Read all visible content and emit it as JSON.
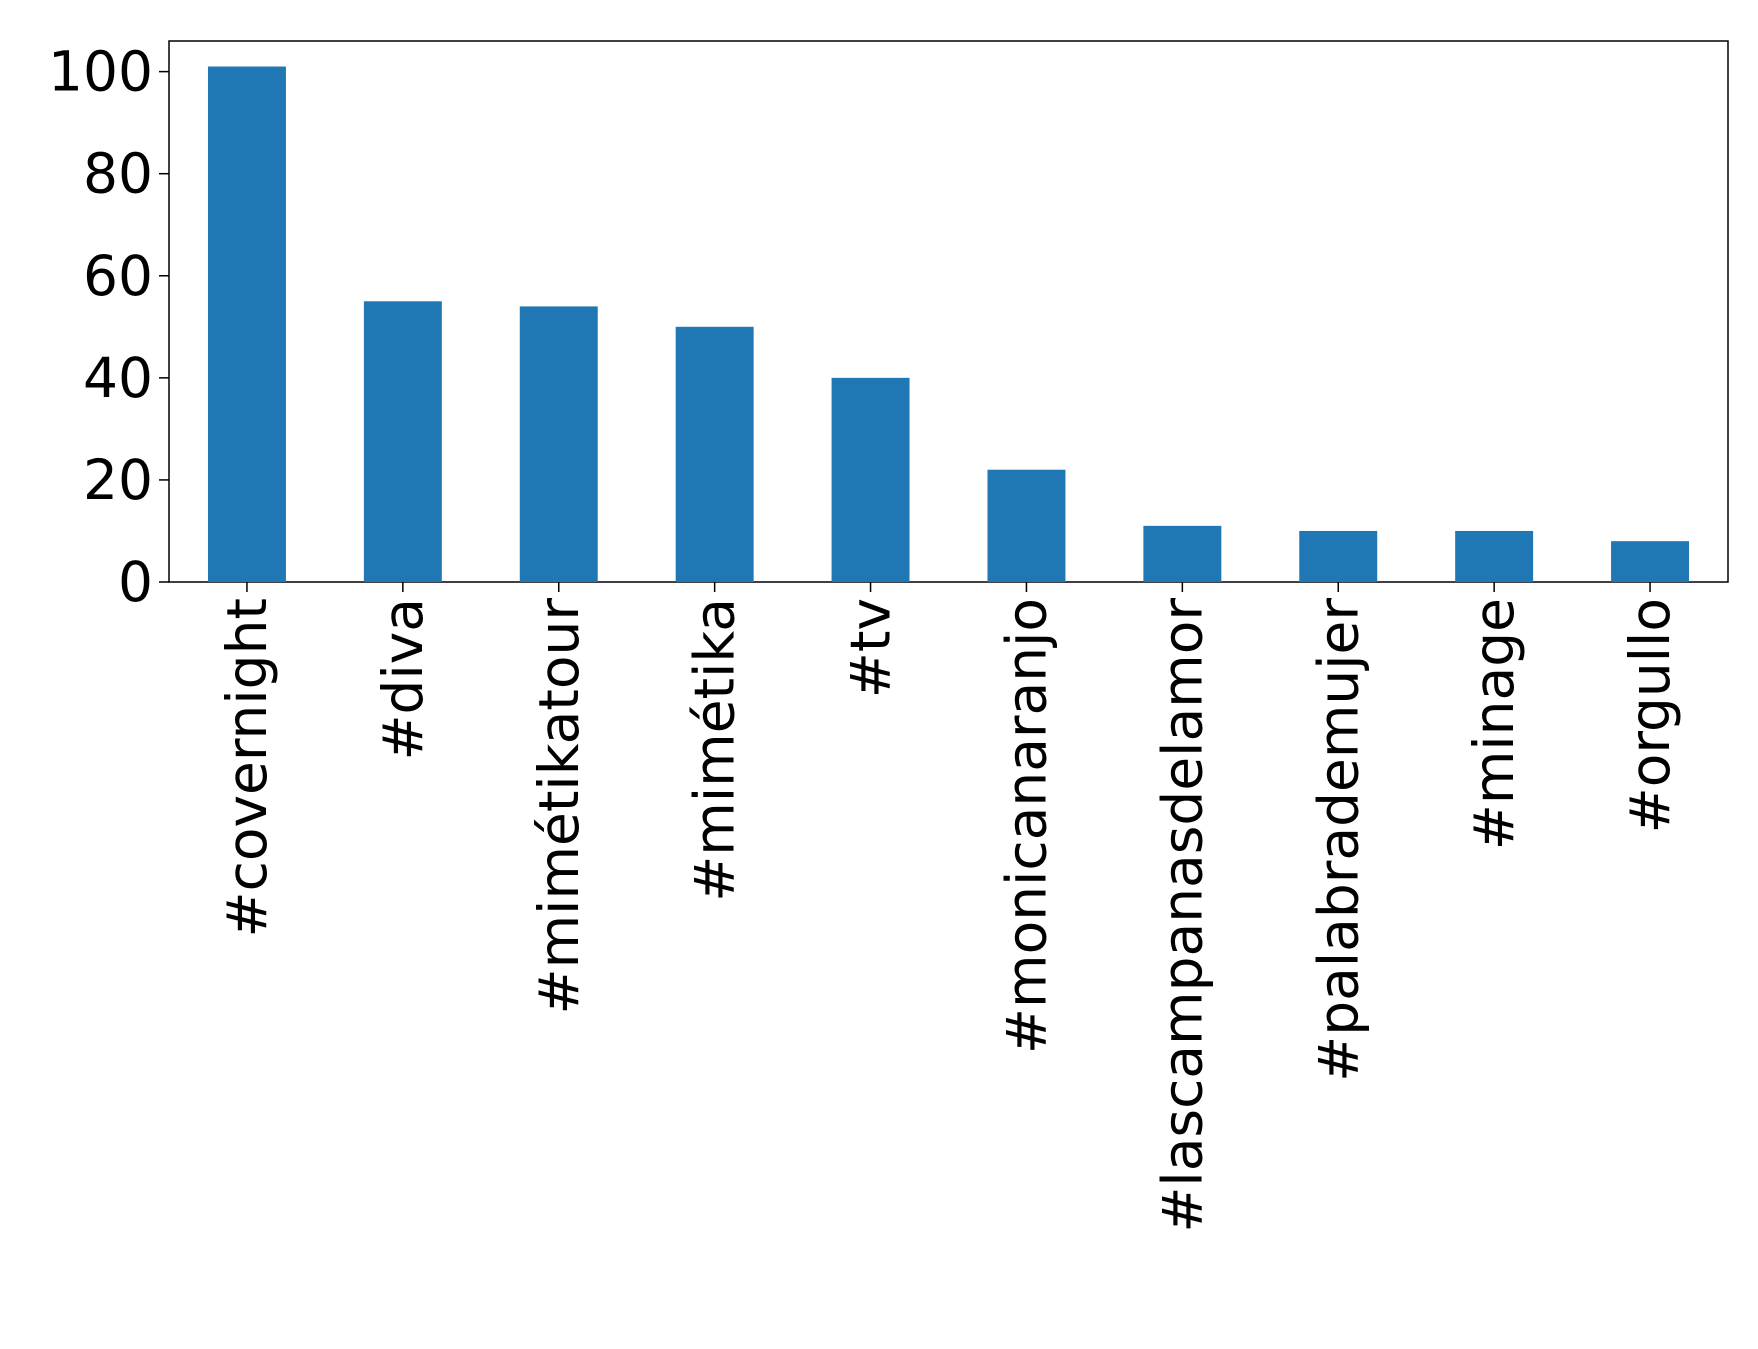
{
  "chart_data": {
    "type": "bar",
    "categories": [
      "#covernight",
      "#diva",
      "#mimétikatour",
      "#mimétika",
      "#tv",
      "#monicanaranjo",
      "#lascampanasdelamor",
      "#palabrademujer",
      "#minage",
      "#orgullo"
    ],
    "values": [
      101,
      55,
      54,
      50,
      40,
      22,
      11,
      10,
      10,
      8
    ],
    "color": "#1f77b4",
    "ylim": [
      0,
      106
    ],
    "yticks": [
      0,
      20,
      40,
      60,
      80,
      100
    ],
    "grid": false
  }
}
